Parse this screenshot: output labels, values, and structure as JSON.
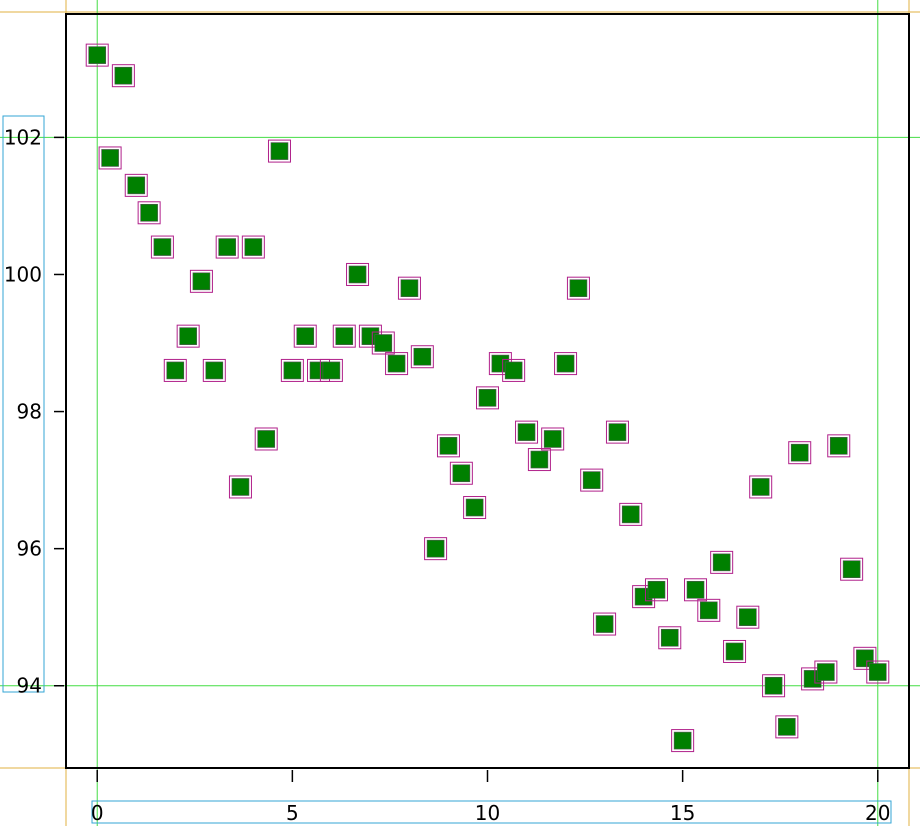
{
  "chart_data": {
    "type": "scatter",
    "title": "",
    "xlabel": "",
    "ylabel": "",
    "xlim": [
      -0.8,
      20.8
    ],
    "ylim": [
      92.8,
      103.8
    ],
    "x_ticks": [
      0,
      5,
      10,
      15,
      20
    ],
    "y_ticks": [
      94,
      96,
      98,
      100,
      102
    ],
    "grid": {
      "x": [
        0,
        20
      ],
      "y": [
        94,
        102
      ]
    },
    "marker": {
      "shape": "square",
      "color": "#008000"
    },
    "series": [
      {
        "points": [
          [
            0,
            103.2
          ],
          [
            0.67,
            102.9
          ],
          [
            0.33,
            101.7
          ],
          [
            1,
            101.3
          ],
          [
            1.33,
            100.9
          ],
          [
            1.67,
            100.4
          ],
          [
            2,
            98.6
          ],
          [
            2.33,
            99.1
          ],
          [
            2.67,
            99.9
          ],
          [
            3,
            98.6
          ],
          [
            3.33,
            100.4
          ],
          [
            3.67,
            96.9
          ],
          [
            4,
            100.4
          ],
          [
            4.33,
            97.6
          ],
          [
            4.67,
            101.8
          ],
          [
            5,
            98.6
          ],
          [
            5.33,
            99.1
          ],
          [
            5.67,
            98.6
          ],
          [
            6,
            98.6
          ],
          [
            6.33,
            99.1
          ],
          [
            6.67,
            100.0
          ],
          [
            7,
            99.1
          ],
          [
            7.33,
            99.0
          ],
          [
            7.67,
            98.7
          ],
          [
            8,
            99.8
          ],
          [
            8.33,
            98.8
          ],
          [
            8.67,
            96.0
          ],
          [
            9,
            97.5
          ],
          [
            9.33,
            97.1
          ],
          [
            9.67,
            96.6
          ],
          [
            10,
            98.2
          ],
          [
            10.33,
            98.7
          ],
          [
            10.67,
            98.6
          ],
          [
            11,
            97.7
          ],
          [
            11.33,
            97.3
          ],
          [
            11.67,
            97.6
          ],
          [
            12,
            98.7
          ],
          [
            12.33,
            99.8
          ],
          [
            12.67,
            97.0
          ],
          [
            13,
            94.9
          ],
          [
            13.33,
            97.7
          ],
          [
            13.67,
            96.5
          ],
          [
            14,
            95.3
          ],
          [
            14.33,
            95.4
          ],
          [
            14.67,
            94.7
          ],
          [
            15,
            93.2
          ],
          [
            15.33,
            95.4
          ],
          [
            15.67,
            95.1
          ],
          [
            16,
            95.8
          ],
          [
            16.33,
            94.5
          ],
          [
            16.67,
            95.0
          ],
          [
            17,
            96.9
          ],
          [
            17.33,
            94.0
          ],
          [
            17.67,
            93.4
          ],
          [
            18,
            97.4
          ],
          [
            18.33,
            94.1
          ],
          [
            18.67,
            94.2
          ],
          [
            19,
            97.5
          ],
          [
            19.33,
            95.7
          ],
          [
            19.67,
            94.4
          ],
          [
            20,
            94.2
          ]
        ]
      }
    ]
  }
}
